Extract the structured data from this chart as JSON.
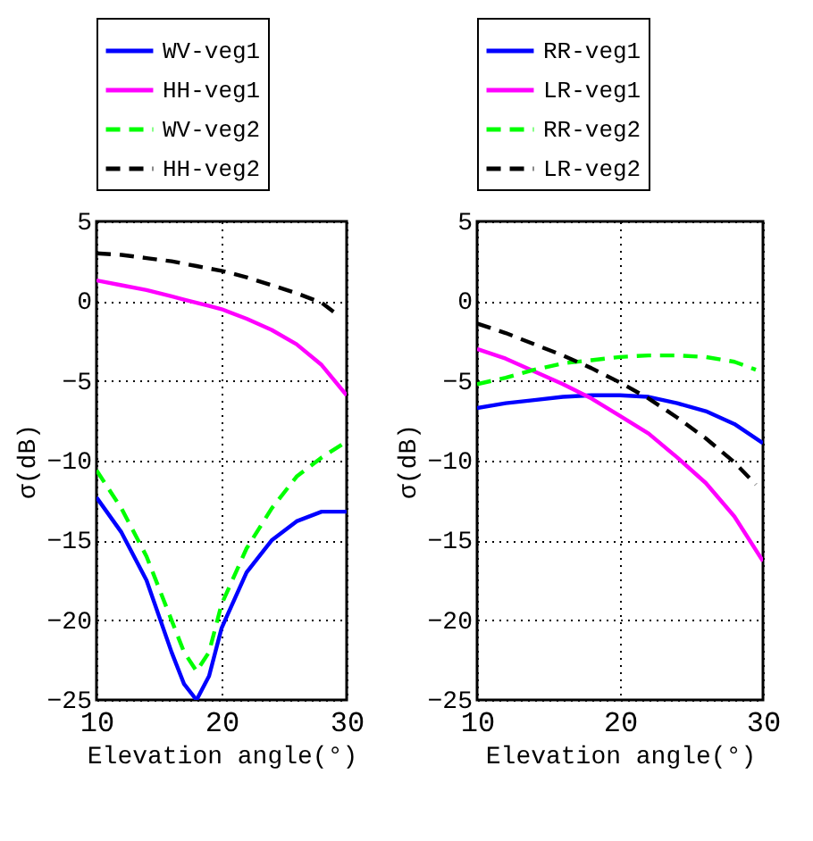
{
  "chart_data": [
    {
      "type": "line",
      "xlabel": "Elevation angle(°)",
      "ylabel": "σ(dB)",
      "xlim": [
        10,
        30
      ],
      "ylim": [
        -25,
        5
      ],
      "xticks": [
        10,
        20,
        30
      ],
      "yticks": [
        -25,
        -20,
        -15,
        -10,
        -5,
        0,
        5
      ],
      "grid": true,
      "legend": "top",
      "x": [
        10,
        12,
        14,
        16,
        17,
        18,
        19,
        20,
        22,
        24,
        26,
        28,
        30
      ],
      "series": [
        {
          "name": "WV-veg1",
          "color": "#0000ff",
          "line_style": "solid",
          "values": [
            -12.3,
            -14.5,
            -17.5,
            -22,
            -24,
            -25,
            -23.5,
            -20.5,
            -17,
            -15,
            -13.8,
            -13.2,
            -13.2
          ]
        },
        {
          "name": "HH-veg1",
          "color": "#ff00ff",
          "line_style": "solid",
          "values": [
            1.3,
            1.0,
            0.7,
            0.3,
            0.1,
            -0.1,
            -0.3,
            -0.5,
            -1.1,
            -1.8,
            -2.7,
            -4,
            -5.9
          ]
        },
        {
          "name": "WV-veg2",
          "color": "#00ff00",
          "line_style": "dashed",
          "values": [
            -10.6,
            -13,
            -16,
            -20,
            -22,
            -23.2,
            -22,
            -19,
            -15.5,
            -13,
            -11,
            -9.8,
            -8.8
          ]
        },
        {
          "name": "HH-veg2",
          "color": "#000000",
          "line_style": "dashed",
          "x": [
            10,
            12,
            14,
            16,
            18,
            20,
            22,
            24,
            26,
            28,
            29.5
          ],
          "values": [
            3.0,
            2.9,
            2.7,
            2.5,
            2.2,
            1.9,
            1.5,
            1.0,
            0.5,
            -0.1,
            -1.0
          ]
        }
      ]
    },
    {
      "type": "line",
      "xlabel": "Elevation angle(°)",
      "ylabel": "σ(dB)",
      "xlim": [
        10,
        30
      ],
      "ylim": [
        -25,
        5
      ],
      "xticks": [
        10,
        20,
        30
      ],
      "yticks": [
        -25,
        -20,
        -15,
        -10,
        -5,
        0,
        5
      ],
      "grid": true,
      "legend": "top",
      "x": [
        10,
        12,
        14,
        16,
        18,
        20,
        22,
        24,
        26,
        28,
        30
      ],
      "series": [
        {
          "name": "RR-veg1",
          "color": "#0000ff",
          "line_style": "solid",
          "values": [
            -6.7,
            -6.4,
            -6.2,
            -6.0,
            -5.9,
            -5.9,
            -6.0,
            -6.4,
            -6.9,
            -7.7,
            -8.9
          ]
        },
        {
          "name": "LR-veg1",
          "color": "#ff00ff",
          "line_style": "solid",
          "values": [
            -3.0,
            -3.6,
            -4.4,
            -5.2,
            -6.1,
            -7.2,
            -8.3,
            -9.8,
            -11.4,
            -13.5,
            -16.3
          ]
        },
        {
          "name": "RR-veg2",
          "color": "#00ff00",
          "line_style": "dashed",
          "x": [
            10,
            12,
            14,
            16,
            18,
            20,
            22,
            24,
            26,
            28,
            29.5
          ],
          "values": [
            -5.2,
            -4.8,
            -4.3,
            -3.9,
            -3.7,
            -3.5,
            -3.4,
            -3.4,
            -3.5,
            -3.8,
            -4.3
          ]
        },
        {
          "name": "LR-veg2",
          "color": "#000000",
          "line_style": "dashed",
          "x": [
            10,
            12,
            14,
            16,
            18,
            20,
            22,
            24,
            26,
            28,
            29.5
          ],
          "values": [
            -1.4,
            -2.0,
            -2.7,
            -3.4,
            -4.2,
            -5.1,
            -6.1,
            -7.3,
            -8.6,
            -10.1,
            -11.5
          ]
        }
      ]
    }
  ]
}
